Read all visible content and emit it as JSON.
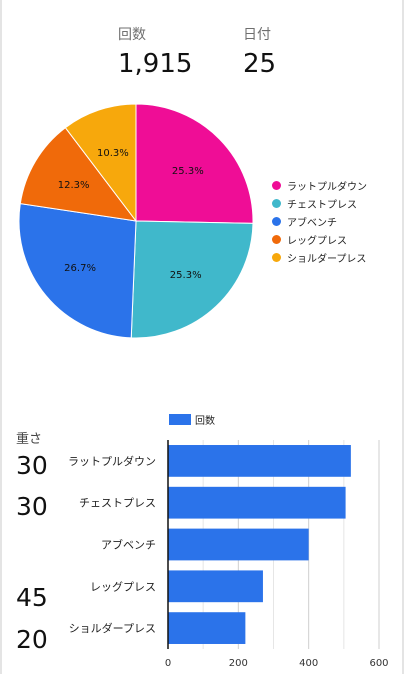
{
  "stats": {
    "count_label": "回数",
    "count_value": "1,915",
    "days_label": "日付",
    "days_value": "25"
  },
  "weight": {
    "title": "重さ",
    "values": [
      "30",
      "30",
      "",
      "45",
      "20"
    ]
  },
  "colors": {
    "pink": "#ef0d96",
    "teal": "#40b8cb",
    "blue": "#2b73ea",
    "orange": "#f06a0a",
    "yellow": "#f7a80c"
  },
  "chart_data": [
    {
      "type": "pie",
      "title": "",
      "legend_position": "right",
      "slices": [
        {
          "label": "ラットプルダウン",
          "percent": 25.3,
          "pct_label": "25.3%",
          "color": "#ef0d96"
        },
        {
          "label": "チェストプレス",
          "percent": 25.3,
          "pct_label": "25.3%",
          "color": "#40b8cb"
        },
        {
          "label": "アブベンチ",
          "percent": 26.7,
          "pct_label": "26.7%",
          "color": "#2b73ea"
        },
        {
          "label": "レッグプレス",
          "percent": 12.3,
          "pct_label": "12.3%",
          "color": "#f06a0a"
        },
        {
          "label": "ショルダープレス",
          "percent": 10.3,
          "pct_label": "10.3%",
          "color": "#f7a80c"
        }
      ]
    },
    {
      "type": "bar",
      "orientation": "horizontal",
      "title": "",
      "legend_position": "top",
      "categories": [
        "ラットプルダウン",
        "チェストプレス",
        "アブベンチ",
        "レッグプレス",
        "ショルダープレス"
      ],
      "series": [
        {
          "name": "回数",
          "values": [
            520,
            505,
            400,
            270,
            220
          ],
          "color": "#2b73ea"
        }
      ],
      "xlim": [
        0,
        600
      ],
      "xticks": [
        0,
        200,
        400,
        600
      ],
      "grid": true
    }
  ]
}
